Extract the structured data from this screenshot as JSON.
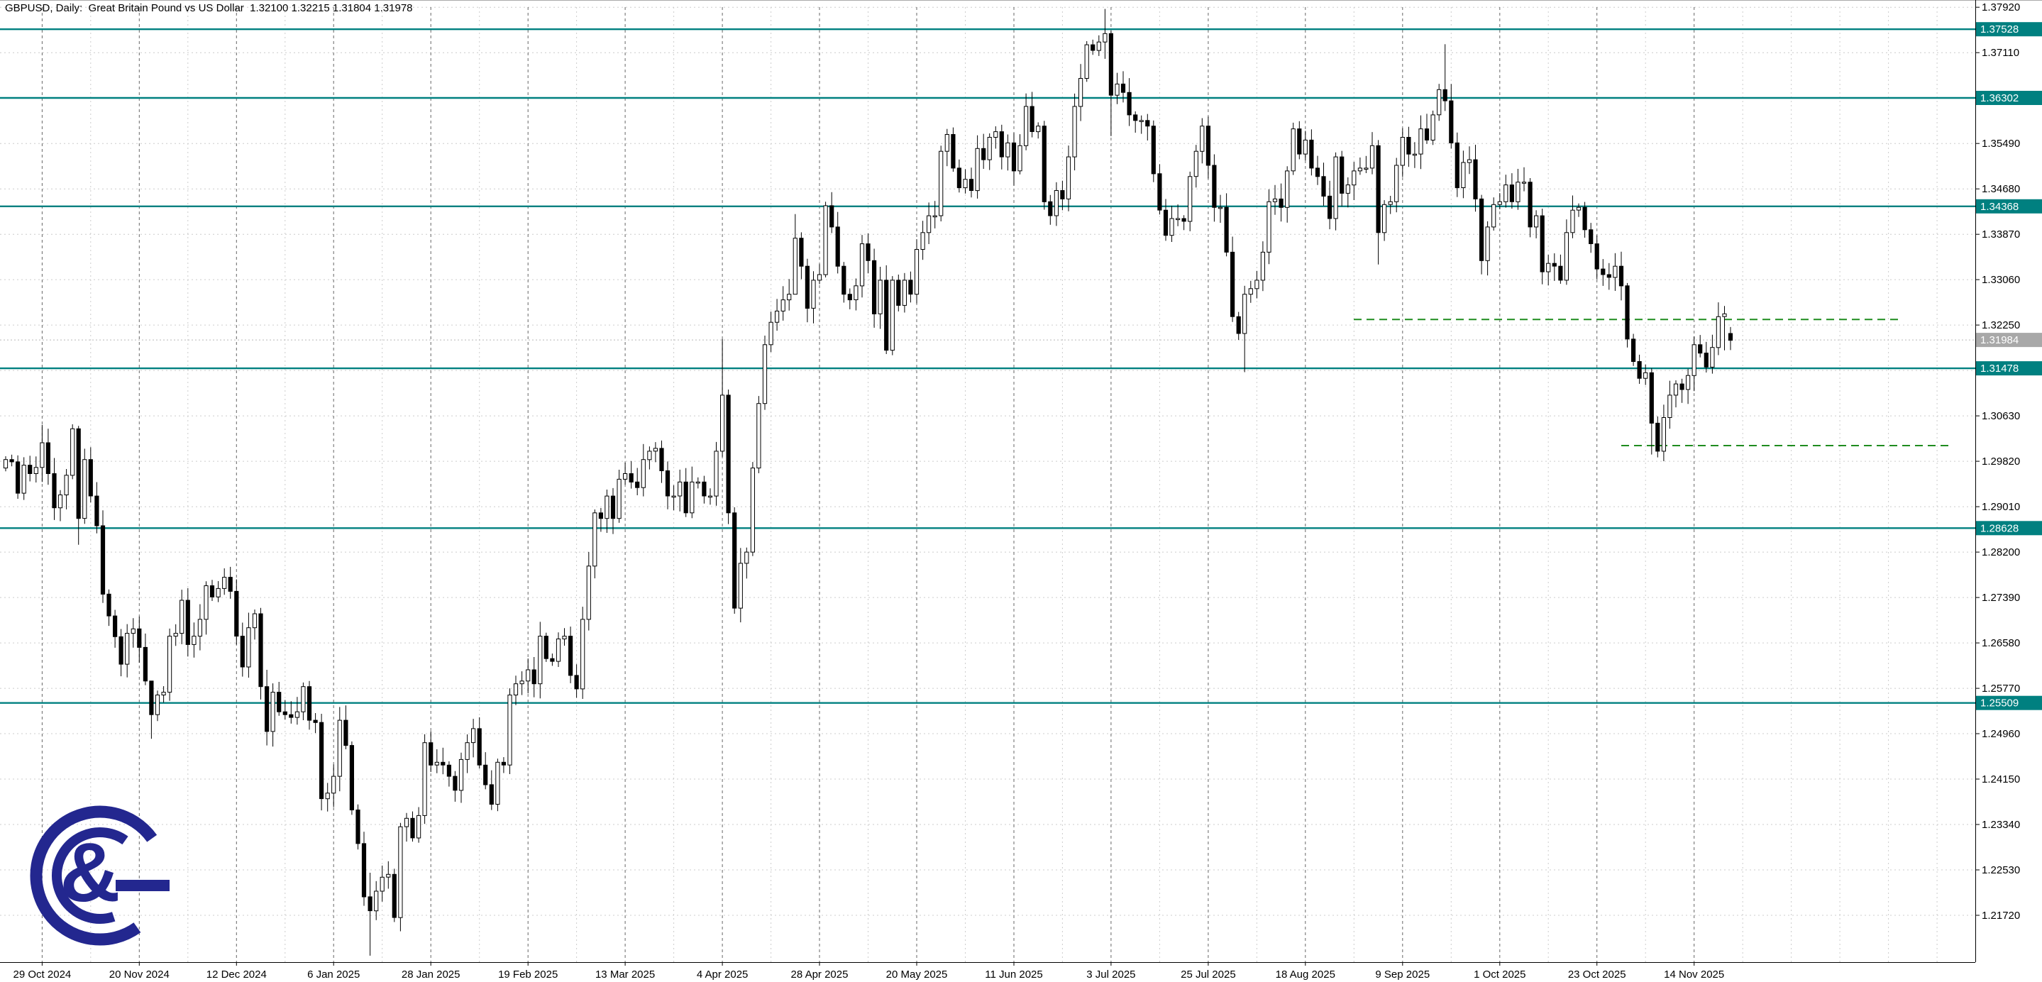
{
  "header": {
    "title": "GBPUSD, Daily:  Great Britain Pound vs US Dollar  1.32100 1.32215 1.31804 1.31978",
    "symbol": "GBPUSD",
    "timeframe": "Daily",
    "description": "Great Britain Pound vs US Dollar",
    "ohlc": {
      "open": "1.32100",
      "high": "1.32215",
      "low": "1.31804",
      "close": "1.31978"
    }
  },
  "colors": {
    "background": "#ffffff",
    "grid": "#cccccc",
    "grid_tick": "#666666",
    "candle_up_fill": "#ffffff",
    "candle_down_fill": "#000000",
    "candle_stroke": "#000000",
    "level_line": "#008080",
    "level_label_bg": "#008080",
    "level_label_text": "#ffffff",
    "current_label_bg": "#a8a8a8",
    "current_label_text": "#ffffff",
    "dashed_line": "#1f8c1f",
    "axis_text": "#000000",
    "border": "#000000",
    "logo": "#23278f"
  },
  "logo": {
    "glyph": "&",
    "name": "G-ampersand-logo"
  },
  "chart_data": {
    "type": "candlestick",
    "title": "GBPUSD Daily — Great Britain Pound vs US Dollar",
    "y_axis": {
      "top_tick": 1.3792,
      "step": 0.0081,
      "tick_count": 21,
      "labels": [
        "1.37920",
        "1.37110",
        "1.35490",
        "1.34680",
        "1.33870",
        "1.33060",
        "1.32250",
        "1.30630",
        "1.29820",
        "1.29010",
        "1.28200",
        "1.27390",
        "1.26580",
        "1.25770",
        "1.24960",
        "1.24150",
        "1.23340",
        "1.22530",
        "1.21720"
      ],
      "range": [
        1.21,
        1.3792
      ]
    },
    "x_axis": {
      "labels": [
        "29 Oct 2024",
        "20 Nov 2024",
        "12 Dec 2024",
        "6 Jan 2025",
        "28 Jan 2025",
        "19 Feb 2025",
        "13 Mar 2025",
        "4 Apr 2025",
        "28 Apr 2025",
        "20 May 2025",
        "11 Jun 2025",
        "3 Jul 2025",
        "25 Jul 2025",
        "18 Aug 2025",
        "9 Sep 2025",
        "1 Oct 2025",
        "23 Oct 2025",
        "14 Nov 2025"
      ],
      "first_label_bar": 6,
      "bars_per_label": 16
    },
    "levels": [
      {
        "label": "1.37528",
        "price": 1.37528
      },
      {
        "label": "1.36302",
        "price": 1.36302
      },
      {
        "label": "1.34368",
        "price": 1.34368
      },
      {
        "label": "1.31478",
        "price": 1.31478
      },
      {
        "label": "1.28628",
        "price": 1.28628
      },
      {
        "label": "1.25509",
        "price": 1.25509
      }
    ],
    "current_price": {
      "label": "1.31984",
      "value": 1.31984
    },
    "dashed_segments": [
      {
        "price": 1.3235,
        "from_bar": 222,
        "to_bar": 312
      },
      {
        "price": 1.301,
        "from_bar": 266,
        "to_bar": 320
      }
    ],
    "first_open": 1.297,
    "closes": [
      1.2985,
      1.2981,
      1.2925,
      1.2975,
      1.296,
      1.2971,
      1.3015,
      1.296,
      1.2899,
      1.2922,
      1.2957,
      1.304,
      1.288,
      1.2985,
      1.292,
      1.2867,
      1.2745,
      1.2706,
      1.2669,
      1.262,
      1.2675,
      1.2683,
      1.265,
      1.259,
      1.253,
      1.2565,
      1.257,
      1.267,
      1.2675,
      1.2734,
      1.2655,
      1.267,
      1.27,
      1.276,
      1.274,
      1.2755,
      1.2775,
      1.275,
      1.267,
      1.2615,
      1.2685,
      1.271,
      1.258,
      1.25,
      1.257,
      1.2535,
      1.253,
      1.2525,
      1.2535,
      1.258,
      1.252,
      1.2516,
      1.238,
      1.239,
      1.242,
      1.252,
      1.2475,
      1.236,
      1.23,
      1.2205,
      1.218,
      1.2215,
      1.224,
      1.2245,
      1.2168,
      1.233,
      1.2345,
      1.231,
      1.235,
      1.248,
      1.244,
      1.2445,
      1.244,
      1.242,
      1.2395,
      1.245,
      1.248,
      1.2505,
      1.244,
      1.2405,
      1.237,
      1.2445,
      1.244,
      1.2565,
      1.2585,
      1.259,
      1.261,
      1.2585,
      1.267,
      1.263,
      1.2625,
      1.2665,
      1.267,
      1.26,
      1.2576,
      1.27,
      1.2795,
      1.289,
      1.288,
      1.292,
      1.288,
      1.295,
      1.296,
      1.2945,
      1.2935,
      1.2985,
      1.3,
      1.3005,
      1.2965,
      1.292,
      1.292,
      1.2945,
      1.289,
      1.2945,
      1.2945,
      1.292,
      1.292,
      1.3,
      1.31,
      1.289,
      1.272,
      1.28,
      1.282,
      1.297,
      1.3085,
      1.319,
      1.323,
      1.325,
      1.327,
      1.328,
      1.338,
      1.333,
      1.3255,
      1.3305,
      1.3315,
      1.3438,
      1.34,
      1.333,
      1.328,
      1.327,
      1.3295,
      1.337,
      1.334,
      1.3245,
      1.3305,
      1.318,
      1.3305,
      1.326,
      1.3305,
      1.328,
      1.336,
      1.339,
      1.342,
      1.342,
      1.3535,
      1.3565,
      1.3505,
      1.347,
      1.3485,
      1.3465,
      1.354,
      1.352,
      1.356,
      1.357,
      1.3525,
      1.355,
      1.35,
      1.3545,
      1.3615,
      1.357,
      1.358,
      1.3445,
      1.342,
      1.3465,
      1.345,
      1.3525,
      1.3615,
      1.3665,
      1.3725,
      1.3715,
      1.373,
      1.3745,
      1.3635,
      1.3655,
      1.364,
      1.36,
      1.359,
      1.359,
      1.358,
      1.3495,
      1.343,
      1.3385,
      1.3415,
      1.3415,
      1.341,
      1.349,
      1.3535,
      1.358,
      1.351,
      1.3435,
      1.3435,
      1.3355,
      1.324,
      1.321,
      1.328,
      1.329,
      1.3305,
      1.3355,
      1.3445,
      1.345,
      1.3435,
      1.35,
      1.3575,
      1.353,
      1.3555,
      1.3505,
      1.349,
      1.3455,
      1.3415,
      1.3525,
      1.346,
      1.3475,
      1.35,
      1.3505,
      1.3505,
      1.3545,
      1.339,
      1.344,
      1.3445,
      1.351,
      1.356,
      1.353,
      1.353,
      1.3575,
      1.3555,
      1.36,
      1.3645,
      1.3625,
      1.355,
      1.347,
      1.3515,
      1.352,
      1.345,
      1.334,
      1.34,
      1.344,
      1.3445,
      1.3475,
      1.3445,
      1.348,
      1.348,
      1.34,
      1.342,
      1.332,
      1.3335,
      1.333,
      1.3305,
      1.339,
      1.343,
      1.3435,
      1.3395,
      1.337,
      1.3325,
      1.3315,
      1.331,
      1.333,
      1.3295,
      1.32,
      1.316,
      1.313,
      1.314,
      1.305,
      1.3,
      1.306,
      1.31,
      1.312,
      1.311,
      1.3135,
      1.319,
      1.3175,
      1.315,
      1.3185,
      1.324,
      1.3245,
      1.31978
    ],
    "extremes": {
      "6": [
        1.3047,
        1.2945
      ],
      "11": [
        1.3048,
        1.295
      ],
      "12": [
        1.3045,
        1.2833
      ],
      "24": [
        1.2587,
        1.2487
      ],
      "43": [
        1.261,
        1.2475
      ],
      "59": [
        1.2321,
        1.2189
      ],
      "60": [
        1.2248,
        1.21
      ],
      "64": [
        1.2255,
        1.216
      ],
      "69": [
        1.2495,
        1.2335
      ],
      "118": [
        1.32,
        1.299
      ],
      "119": [
        1.311,
        1.287
      ],
      "120": [
        1.29,
        1.271
      ],
      "130": [
        1.3423,
        1.328
      ],
      "135": [
        1.3445,
        1.331
      ],
      "154": [
        1.3545,
        1.341
      ],
      "181": [
        1.3789,
        1.37
      ],
      "182": [
        1.375,
        1.3562
      ],
      "189": [
        1.359,
        1.348
      ],
      "204": [
        1.3295,
        1.3141
      ],
      "226": [
        1.3555,
        1.3333
      ],
      "237": [
        1.3726,
        1.3607
      ],
      "238": [
        1.3655,
        1.354
      ],
      "267": [
        1.33,
        1.3185
      ],
      "271": [
        1.3148,
        1.2994
      ],
      "272": [
        1.3062,
        1.2989
      ],
      "283": [
        1.3259,
        1.318
      ]
    },
    "last_candle": [
      1.321,
      1.32215,
      1.31804,
      1.31978
    ]
  }
}
